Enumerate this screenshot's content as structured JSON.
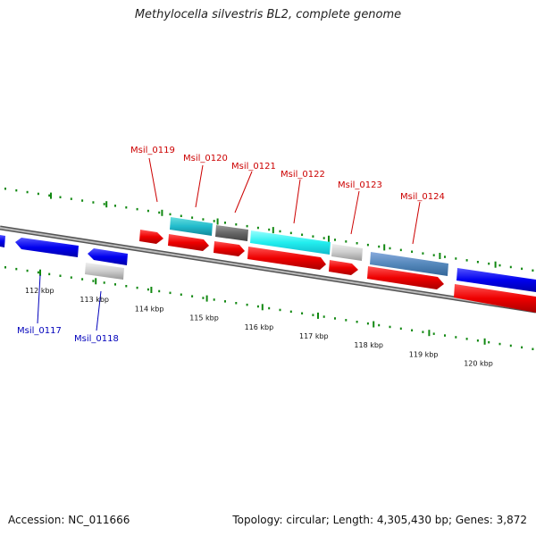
{
  "title": "Methylocella silvestris BL2, complete genome",
  "footer": {
    "accession": "Accession: NC_011666",
    "topology": "Topology: circular; Length: 4,305,430 bp; Genes: 3,872"
  },
  "colors": {
    "forward_cds": "#ee1111",
    "reverse_cds": "#1111ee",
    "backbone": "#8a8a8a",
    "tick": "#118811",
    "label_forward": "#cc0000",
    "label_reverse": "#0000bb"
  },
  "tick_labels": [
    "112 kbp",
    "113 kbp",
    "114 kbp",
    "115 kbp",
    "116 kbp",
    "117 kbp",
    "118 kbp",
    "119 kbp",
    "120 kbp"
  ],
  "genes_labeled": [
    {
      "name": "Msil_0117",
      "strand": "reverse"
    },
    {
      "name": "Msil_0118",
      "strand": "reverse"
    },
    {
      "name": "Msil_0119",
      "strand": "forward"
    },
    {
      "name": "Msil_0120",
      "strand": "forward"
    },
    {
      "name": "Msil_0121",
      "strand": "forward"
    },
    {
      "name": "Msil_0122",
      "strand": "forward"
    },
    {
      "name": "Msil_0123",
      "strand": "forward"
    },
    {
      "name": "Msil_0124",
      "strand": "forward"
    }
  ]
}
